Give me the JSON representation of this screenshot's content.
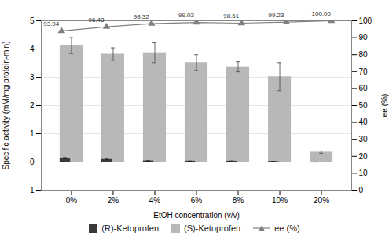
{
  "chart_data": {
    "type": "bar",
    "categories": [
      "0%",
      "2%",
      "4%",
      "6%",
      "8%",
      "10%",
      "20%"
    ],
    "xlabel": "EtOH concentration (v/v)",
    "ylabel": "Specific activity (mM/mg protein-min)",
    "y2label": "ee (%)",
    "ylim": [
      -1,
      5
    ],
    "yticks": [
      -1,
      0,
      1,
      2,
      3,
      4,
      5
    ],
    "y2lim": [
      0,
      100
    ],
    "y2ticks": [
      0,
      10,
      20,
      30,
      40,
      50,
      60,
      70,
      80,
      90,
      100
    ],
    "grid": true,
    "legend": "bottom",
    "series": [
      {
        "name": "(R)-Ketoprofen",
        "type": "bar",
        "color": "#3a3a3a",
        "values": [
          0.14,
          0.09,
          0.04,
          0.03,
          0.03,
          0.02,
          0.0
        ],
        "errors": [
          0.015,
          0.012,
          0.006,
          0.005,
          0.005,
          0.004,
          0.002
        ]
      },
      {
        "name": "(S)-Ketoprofen",
        "type": "bar",
        "color": "#b8b8b8",
        "values": [
          4.12,
          3.82,
          3.87,
          3.52,
          3.37,
          3.02,
          0.35
        ],
        "errors": [
          0.28,
          0.22,
          0.35,
          0.28,
          0.18,
          0.5,
          0.04
        ]
      },
      {
        "name": "ee (%)",
        "type": "line",
        "axis": "y2",
        "color": "#808080",
        "marker": "triangle",
        "values": [
          93.94,
          96.48,
          98.32,
          99.03,
          98.61,
          99.23,
          100.0
        ],
        "value_labels": [
          "93.94",
          "96.48",
          "98.32",
          "99.03",
          "98.61",
          "99.23",
          "100.00"
        ],
        "data_labels": true
      }
    ]
  }
}
